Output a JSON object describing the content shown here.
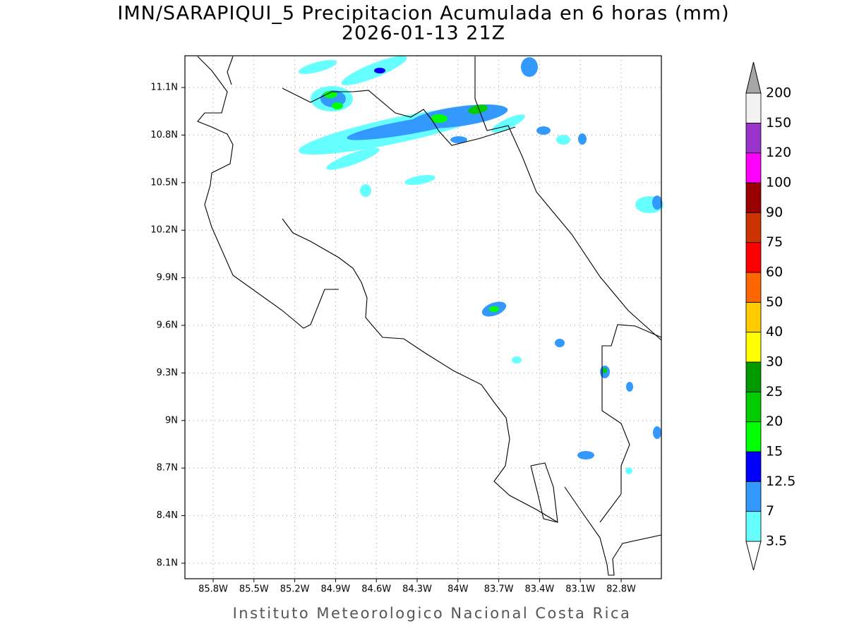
{
  "header": {
    "title": "IMN/SARAPIQUI_5 Precipitacion Acumulada en 6 horas (mm)",
    "subtitle": "2026-01-13 21Z"
  },
  "map": {
    "lat_labels": [
      "8.1N",
      "8.4N",
      "8.7N",
      "9N",
      "9.3N",
      "9.6N",
      "9.9N",
      "10.2N",
      "10.5N",
      "10.8N",
      "11.1N"
    ],
    "lon_labels": [
      "85.8W",
      "85.5W",
      "85.2W",
      "84.9W",
      "84.6W",
      "84.3W",
      "84W",
      "83.7W",
      "83.4W",
      "83.1W",
      "82.8W"
    ]
  },
  "colorbar": {
    "levels": [
      3.5,
      7,
      12.5,
      15,
      20,
      25,
      30,
      40,
      50,
      60,
      75,
      90,
      100,
      120,
      150,
      200
    ],
    "colors": [
      "#66ffff",
      "#3399ff",
      "#0000ff",
      "#00ff00",
      "#00cc00",
      "#009900",
      "#ffff00",
      "#ffcc00",
      "#ff6600",
      "#ff0000",
      "#cc3300",
      "#990000",
      "#ff00ff",
      "#9933cc",
      "#f2f2f2"
    ],
    "under_color": "#ffffff",
    "over_color": "#a6a6a6"
  },
  "footer": "Instituto Meteorologico Nacional Costa Rica"
}
